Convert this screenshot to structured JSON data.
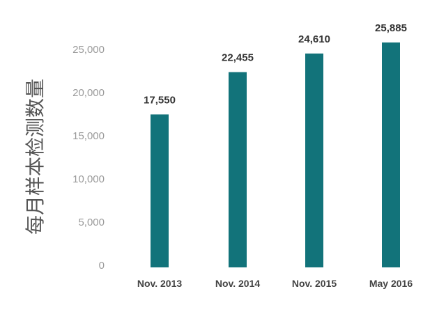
{
  "chart_data": {
    "type": "bar",
    "categories": [
      "Nov. 2013",
      "Nov. 2014",
      "Nov. 2015",
      "May 2016"
    ],
    "values": [
      17550,
      22455,
      24610,
      25885
    ],
    "data_labels": [
      "17,550",
      "22,455",
      "24,610",
      "25,885"
    ],
    "title": "",
    "xlabel": "",
    "ylabel": "每月样本检测数量",
    "ylim": [
      0,
      25000
    ],
    "yticks": [
      0,
      5000,
      10000,
      15000,
      20000,
      25000
    ],
    "ytick_labels": [
      "0",
      "5,000",
      "10,000",
      "15,000",
      "20,000",
      "25,000"
    ],
    "grid": false,
    "legend": "none",
    "bar_color": "#12737a"
  }
}
